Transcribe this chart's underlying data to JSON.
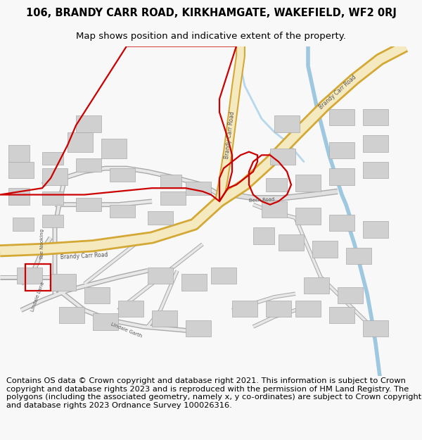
{
  "title": "106, BRANDY CARR ROAD, KIRKHAMGATE, WAKEFIELD, WF2 0RJ",
  "subtitle": "Map shows position and indicative extent of the property.",
  "footer": "Contains OS data © Crown copyright and database right 2021. This information is subject to Crown copyright and database rights 2023 and is reproduced with the permission of HM Land Registry. The polygons (including the associated geometry, namely x, y co-ordinates) are subject to Crown copyright and database rights 2023 Ordnance Survey 100026316.",
  "bg_color": "#f8f8f8",
  "map_bg": "#ffffff",
  "road_fill": "#f5e9c0",
  "road_edge": "#d4a835",
  "building_color": "#d0d0d0",
  "building_edge": "#aaaaaa",
  "water_color": "#9ec8e0",
  "red_color": "#cc0000",
  "red_lw": 1.6,
  "title_fontsize": 10.5,
  "subtitle_fontsize": 9.5,
  "footer_fontsize": 8.2,
  "label_color": "#555555",
  "label_fontsize": 5.5
}
